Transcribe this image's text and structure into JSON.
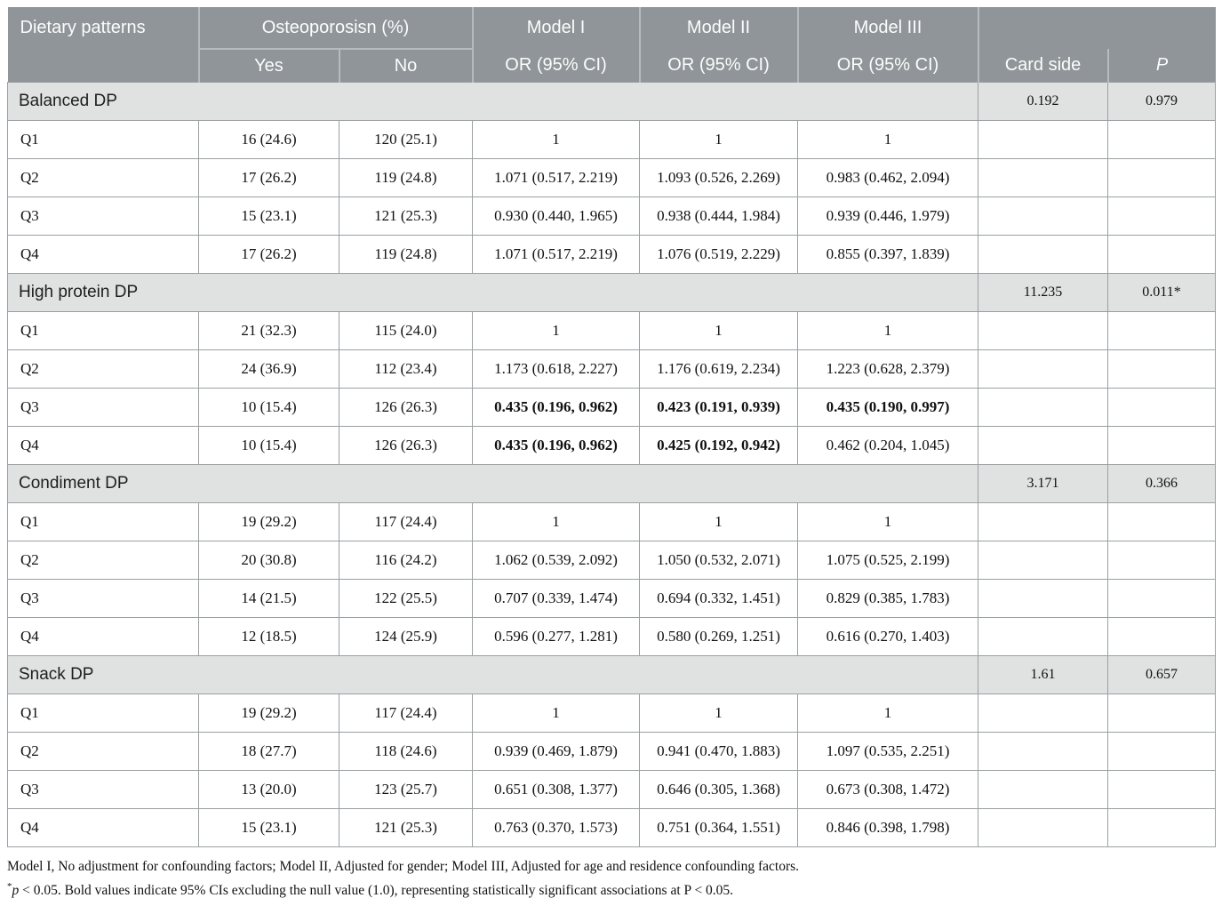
{
  "colors": {
    "header_bg": "#8f9598",
    "header_text": "#fcfdfd",
    "header_divider": "#b6bbbe",
    "section_row_bg": "#e0e2e2",
    "cell_border": "#9aa0a3",
    "body_text": "#111111"
  },
  "table": {
    "header": {
      "col_dietary": "Dietary patterns",
      "col_osteo": "Osteoporosisn (%)",
      "col_yes": "Yes",
      "col_no": "No",
      "models": [
        {
          "title": "Model I",
          "subtitle": "OR (95% CI)"
        },
        {
          "title": "Model II",
          "subtitle": "OR (95% CI)"
        },
        {
          "title": "Model III",
          "subtitle": "OR (95% CI)"
        }
      ],
      "col_card_side": "Card side",
      "col_p": "P"
    },
    "sections": [
      {
        "name": "Balanced DP",
        "card_side": "0.192",
        "p": "0.979",
        "rows": [
          {
            "label": "Q1",
            "yes": "16 (24.6)",
            "no": "120 (25.1)",
            "m1": "1",
            "m2": "1",
            "m3": "1",
            "bold": []
          },
          {
            "label": "Q2",
            "yes": "17 (26.2)",
            "no": "119 (24.8)",
            "m1": "1.071 (0.517, 2.219)",
            "m2": "1.093 (0.526, 2.269)",
            "m3": "0.983 (0.462, 2.094)",
            "bold": []
          },
          {
            "label": "Q3",
            "yes": "15 (23.1)",
            "no": "121 (25.3)",
            "m1": "0.930 (0.440, 1.965)",
            "m2": "0.938 (0.444, 1.984)",
            "m3": "0.939 (0.446, 1.979)",
            "bold": []
          },
          {
            "label": "Q4",
            "yes": "17 (26.2)",
            "no": "119 (24.8)",
            "m1": "1.071 (0.517, 2.219)",
            "m2": "1.076 (0.519, 2.229)",
            "m3": "0.855 (0.397, 1.839)",
            "bold": []
          }
        ]
      },
      {
        "name": "High protein DP",
        "card_side": "11.235",
        "p": "0.011*",
        "rows": [
          {
            "label": "Q1",
            "yes": "21 (32.3)",
            "no": "115 (24.0)",
            "m1": "1",
            "m2": "1",
            "m3": "1",
            "bold": []
          },
          {
            "label": "Q2",
            "yes": "24 (36.9)",
            "no": "112 (23.4)",
            "m1": "1.173 (0.618, 2.227)",
            "m2": "1.176 (0.619, 2.234)",
            "m3": "1.223 (0.628, 2.379)",
            "bold": []
          },
          {
            "label": "Q3",
            "yes": "10 (15.4)",
            "no": "126 (26.3)",
            "m1": "0.435 (0.196, 0.962)",
            "m2": "0.423 (0.191, 0.939)",
            "m3": "0.435 (0.190, 0.997)",
            "bold": [
              "m1",
              "m2",
              "m3"
            ]
          },
          {
            "label": "Q4",
            "yes": "10 (15.4)",
            "no": "126 (26.3)",
            "m1": "0.435 (0.196, 0.962)",
            "m2": "0.425 (0.192, 0.942)",
            "m3": "0.462 (0.204, 1.045)",
            "bold": [
              "m1",
              "m2"
            ]
          }
        ]
      },
      {
        "name": "Condiment DP",
        "card_side": "3.171",
        "p": "0.366",
        "rows": [
          {
            "label": "Q1",
            "yes": "19 (29.2)",
            "no": "117 (24.4)",
            "m1": "1",
            "m2": "1",
            "m3": "1",
            "bold": []
          },
          {
            "label": "Q2",
            "yes": "20 (30.8)",
            "no": "116 (24.2)",
            "m1": "1.062 (0.539, 2.092)",
            "m2": "1.050 (0.532, 2.071)",
            "m3": "1.075 (0.525, 2.199)",
            "bold": []
          },
          {
            "label": "Q3",
            "yes": "14 (21.5)",
            "no": "122 (25.5)",
            "m1": "0.707 (0.339, 1.474)",
            "m2": "0.694 (0.332, 1.451)",
            "m3": "0.829 (0.385, 1.783)",
            "bold": []
          },
          {
            "label": "Q4",
            "yes": "12 (18.5)",
            "no": "124 (25.9)",
            "m1": "0.596 (0.277, 1.281)",
            "m2": "0.580 (0.269, 1.251)",
            "m3": "0.616 (0.270, 1.403)",
            "bold": []
          }
        ]
      },
      {
        "name": "Snack DP",
        "card_side": "1.61",
        "p": "0.657",
        "rows": [
          {
            "label": "Q1",
            "yes": "19 (29.2)",
            "no": "117 (24.4)",
            "m1": "1",
            "m2": "1",
            "m3": "1",
            "bold": []
          },
          {
            "label": "Q2",
            "yes": "18 (27.7)",
            "no": "118 (24.6)",
            "m1": "0.939 (0.469, 1.879)",
            "m2": "0.941 (0.470, 1.883)",
            "m3": "1.097 (0.535, 2.251)",
            "bold": []
          },
          {
            "label": "Q3",
            "yes": "13 (20.0)",
            "no": "123 (25.7)",
            "m1": "0.651 (0.308, 1.377)",
            "m2": "0.646 (0.305, 1.368)",
            "m3": "0.673 (0.308, 1.472)",
            "bold": []
          },
          {
            "label": "Q4",
            "yes": "15 (23.1)",
            "no": "121 (25.3)",
            "m1": "0.763 (0.370, 1.573)",
            "m2": "0.751 (0.364, 1.551)",
            "m3": "0.846 (0.398, 1.798)",
            "bold": []
          }
        ]
      }
    ],
    "footnotes": {
      "line1": "Model I, No adjustment for confounding factors; Model II, Adjusted for gender; Model III, Adjusted for age and residence confounding factors.",
      "line2_sup": "*",
      "line2_p": "p",
      "line2_rest": " < 0.05. Bold values indicate 95% CIs excluding the null value (1.0), representing statistically significant associations at P < 0.05."
    }
  }
}
